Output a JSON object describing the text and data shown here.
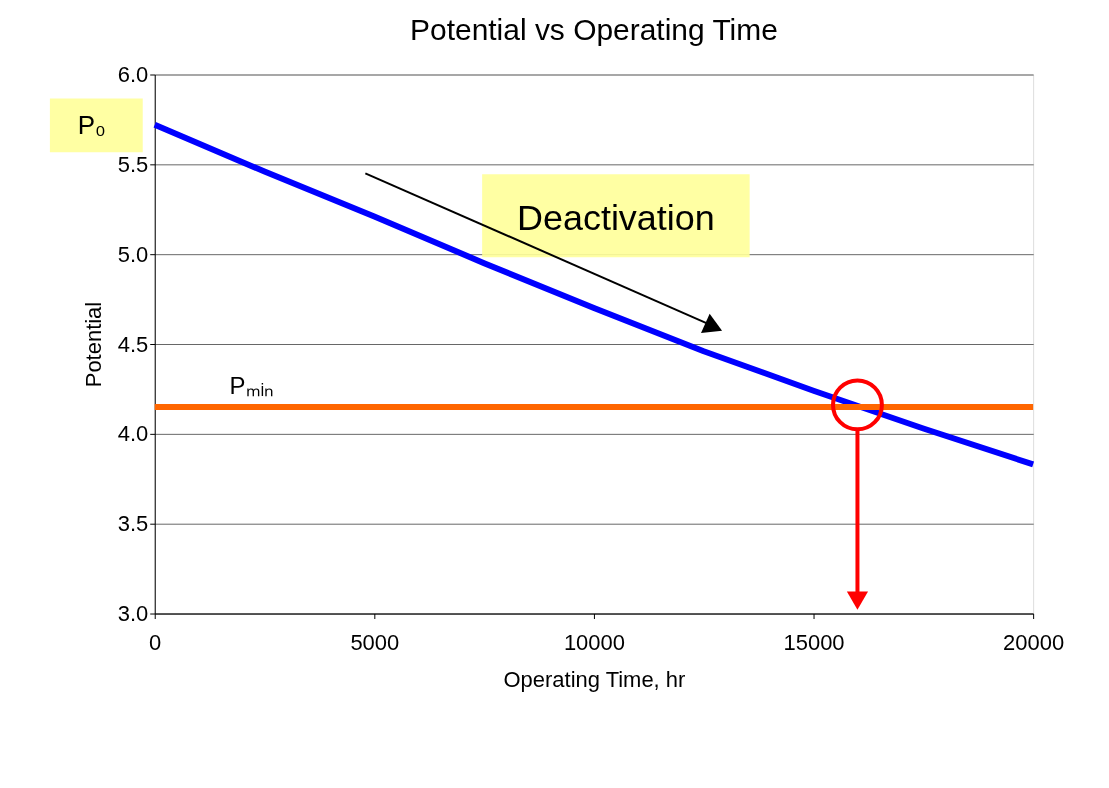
{
  "chart_data": {
    "type": "line",
    "title": "Potential vs Operating Time",
    "xlabel": "Operating Time, hr",
    "ylabel": "Potential",
    "x": [
      0,
      2500,
      5000,
      7500,
      10000,
      12500,
      15000,
      17500,
      20000
    ],
    "series": [
      {
        "color": "#0000ff",
        "values": [
          5.72,
          5.46,
          5.21,
          4.95,
          4.7,
          4.46,
          4.24,
          4.03,
          3.83
        ]
      }
    ],
    "xlim": [
      0,
      20000
    ],
    "xticks": [
      0,
      5000,
      10000,
      15000,
      20000
    ],
    "ylim": [
      3.0,
      6.0
    ],
    "yticks": [
      {
        "value": 3.0,
        "label": "3.0"
      },
      {
        "value": 3.5,
        "label": "3.5"
      },
      {
        "value": 4.0,
        "label": "4.0"
      },
      {
        "value": 4.5,
        "label": "4.5"
      },
      {
        "value": 5.0,
        "label": "5.0"
      },
      {
        "value": 5.5,
        "label": "5.5"
      },
      {
        "value": 6.0,
        "label": "6.0"
      }
    ],
    "grid": "y",
    "legend": false,
    "marker": "none",
    "line_style": "solid",
    "ref_lines": [
      {
        "axis": "y",
        "value": 4.15,
        "label": "Pₘᵢₙ",
        "color": "#ff6600"
      }
    ],
    "annotations": [
      "P₀",
      "Deactivation"
    ]
  }
}
